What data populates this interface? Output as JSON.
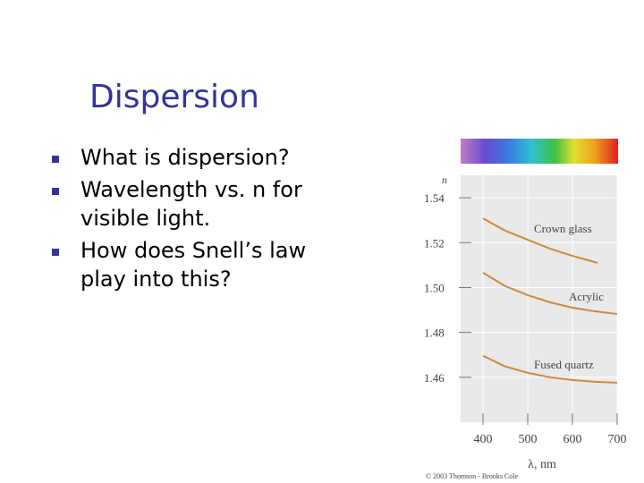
{
  "slide": {
    "title": "Dispersion",
    "bullets": [
      "What is dispersion?",
      "Wavelength vs. n for visible light.",
      "How does Snell’s law play into this?"
    ]
  },
  "chart_data": {
    "type": "line",
    "xlabel": "λ, nm",
    "ylabel": "n",
    "credit": "© 2003 Thomson - Brooks Cole",
    "xlim": [
      350,
      700
    ],
    "ylim": [
      1.44,
      1.55
    ],
    "xticks": [
      400,
      500,
      600,
      700
    ],
    "yticks": [
      1.46,
      1.48,
      {
        "value": 1.5,
        "label": "1.50"
      },
      1.52,
      1.54
    ],
    "grid": true,
    "series": [
      {
        "name": "Crown glass",
        "color": "#d0883c",
        "x": [
          400,
          450,
          500,
          550,
          600,
          656
        ],
        "values": [
          1.5308,
          1.5253,
          1.5213,
          1.5173,
          1.5141,
          1.511
        ]
      },
      {
        "name": "Acrylic",
        "color": "#d0883c",
        "x": [
          400,
          450,
          500,
          550,
          600,
          650,
          700
        ],
        "values": [
          1.5066,
          1.5006,
          1.4966,
          1.4934,
          1.491,
          1.4894,
          1.4882
        ]
      },
      {
        "name": "Fused quartz",
        "color": "#d0883c",
        "x": [
          400,
          450,
          500,
          550,
          600,
          650,
          700
        ],
        "values": [
          1.4696,
          1.4648,
          1.462,
          1.46,
          1.4588,
          1.458,
          1.4576
        ]
      }
    ]
  }
}
